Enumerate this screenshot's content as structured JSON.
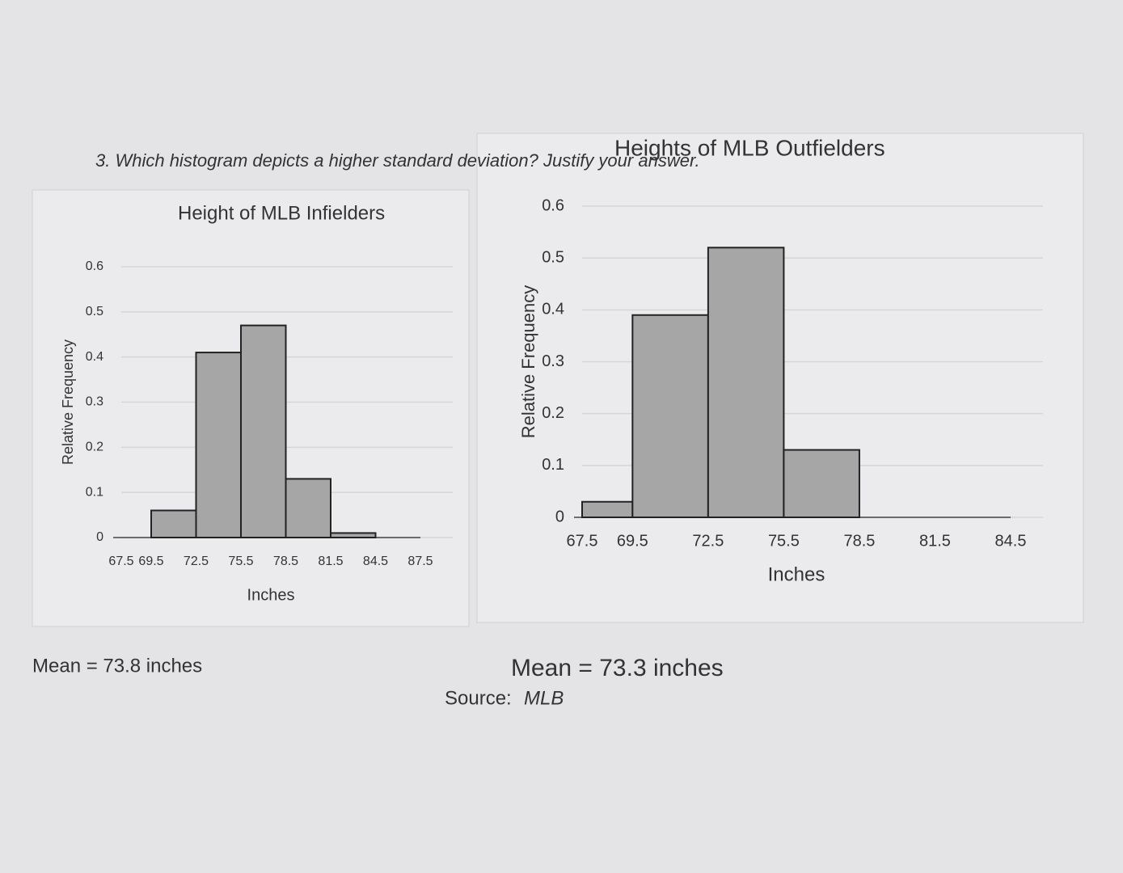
{
  "question": "3. Which histogram depicts a higher standard deviation? Justify your answer.",
  "chart_data": [
    {
      "type": "histogram",
      "title": "Height of MLB Infielders",
      "xlabel": "Inches",
      "ylabel": "Relative Frequency",
      "bins": [
        67.5,
        69.5,
        72.5,
        75.5,
        78.5,
        81.5,
        84.5,
        87.5
      ],
      "values": [
        0,
        0.06,
        0.41,
        0.47,
        0.13,
        0.01,
        0
      ],
      "xlim": [
        67.5,
        87.5
      ],
      "xticks": [
        67.5,
        69.5,
        72.5,
        75.5,
        78.5,
        81.5,
        84.5,
        87.5
      ],
      "ylim": [
        0,
        0.6
      ],
      "yticks": [
        0,
        0.1,
        0.2,
        0.3,
        0.4,
        0.5,
        0.6
      ],
      "color": "#a6a6a6",
      "grid": true
    },
    {
      "type": "histogram",
      "title": "Heights of MLB Outfielders",
      "xlabel": "Inches",
      "ylabel": "Relative Frequency",
      "bins": [
        67.5,
        69.5,
        72.5,
        75.5,
        78.5,
        81.5,
        84.5
      ],
      "values": [
        0.03,
        0.39,
        0.52,
        0.13,
        0,
        0
      ],
      "xlim": [
        67.5,
        84.5
      ],
      "xticks": [
        67.5,
        69.5,
        72.5,
        75.5,
        78.5,
        81.5,
        84.5
      ],
      "ylim": [
        0,
        0.6
      ],
      "yticks": [
        0,
        0.1,
        0.2,
        0.3,
        0.4,
        0.5,
        0.6
      ],
      "color": "#a6a6a6",
      "grid": true
    }
  ],
  "notes": [
    "Mean = 73.8 inches",
    "Mean = 73.3 inches"
  ],
  "source": {
    "label": "Source:",
    "name": "MLB"
  }
}
